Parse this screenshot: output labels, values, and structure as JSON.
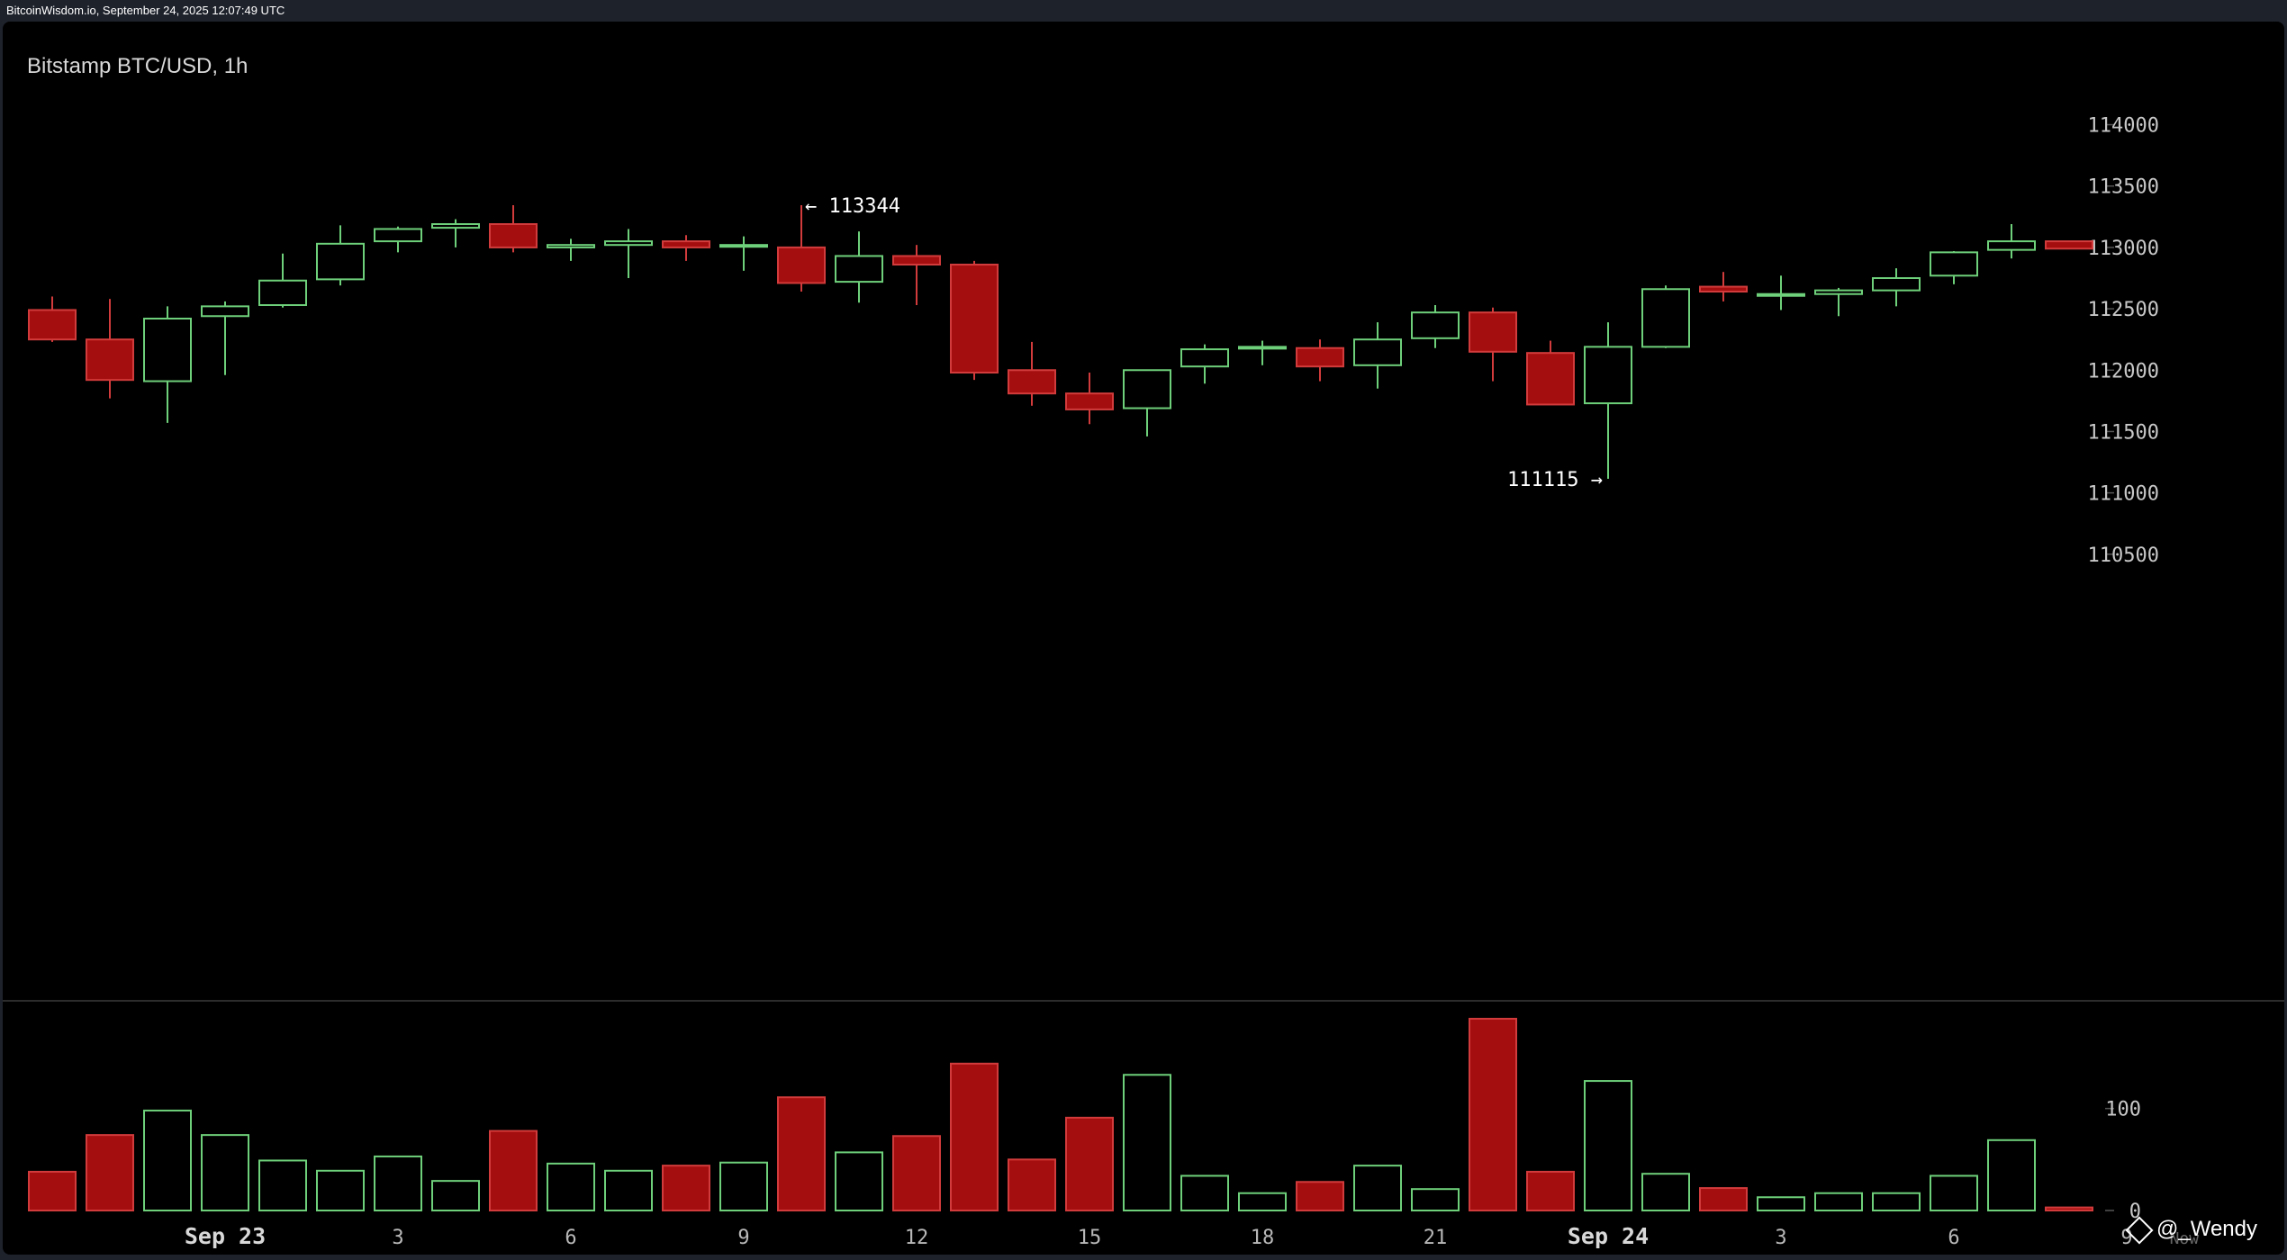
{
  "header": {
    "source": "BitcoinWisdom.io, September 24, 2025 12:07:49 UTC"
  },
  "watermark": {
    "text": "@_Wendy"
  },
  "chart_data": {
    "type": "candlestick",
    "title": "Bitstamp BTC/USD, 1h",
    "price_axis": {
      "ticks": [
        110500,
        111000,
        111500,
        112000,
        112500,
        113000,
        113500,
        114000
      ],
      "range": [
        110000,
        114400
      ]
    },
    "volume_axis": {
      "ticks": [
        0,
        100
      ],
      "range": [
        0,
        195
      ]
    },
    "x_ticks": [
      {
        "label": "Sep 23",
        "i": 3,
        "major": true
      },
      {
        "label": "3",
        "i": 6
      },
      {
        "label": "6",
        "i": 9
      },
      {
        "label": "9",
        "i": 12
      },
      {
        "label": "12",
        "i": 15
      },
      {
        "label": "15",
        "i": 18
      },
      {
        "label": "18",
        "i": 21
      },
      {
        "label": "21",
        "i": 24
      },
      {
        "label": "Sep 24",
        "i": 27,
        "major": true
      },
      {
        "label": "3",
        "i": 30
      },
      {
        "label": "6",
        "i": 33
      },
      {
        "label": "9",
        "i": 36
      },
      {
        "label": "Now",
        "i": 36.9
      }
    ],
    "annotations": [
      {
        "text": "← 113344",
        "i": 13,
        "value": 113344,
        "side": "right"
      },
      {
        "text": "111115 →",
        "i": 27,
        "value": 111115,
        "side": "left"
      }
    ],
    "candles": [
      {
        "o": 112490,
        "h": 112600,
        "l": 112230,
        "c": 112250,
        "v": 38
      },
      {
        "o": 112250,
        "h": 112580,
        "l": 111770,
        "c": 111920,
        "v": 74
      },
      {
        "o": 111910,
        "h": 112520,
        "l": 111570,
        "c": 112420,
        "v": 98
      },
      {
        "o": 112440,
        "h": 112560,
        "l": 111960,
        "c": 112520,
        "v": 74
      },
      {
        "o": 112530,
        "h": 112950,
        "l": 112510,
        "c": 112730,
        "v": 49
      },
      {
        "o": 112740,
        "h": 113180,
        "l": 112690,
        "c": 113030,
        "v": 39
      },
      {
        "o": 113050,
        "h": 113170,
        "l": 112960,
        "c": 113150,
        "v": 53
      },
      {
        "o": 113160,
        "h": 113230,
        "l": 113000,
        "c": 113190,
        "v": 29
      },
      {
        "o": 113190,
        "h": 113344,
        "l": 112960,
        "c": 113000,
        "v": 78
      },
      {
        "o": 113000,
        "h": 113070,
        "l": 112890,
        "c": 113020,
        "v": 46
      },
      {
        "o": 113020,
        "h": 113150,
        "l": 112750,
        "c": 113050,
        "v": 39
      },
      {
        "o": 113050,
        "h": 113100,
        "l": 112890,
        "c": 113000,
        "v": 44
      },
      {
        "o": 113010,
        "h": 113090,
        "l": 112810,
        "c": 113020,
        "v": 47
      },
      {
        "o": 113000,
        "h": 113344,
        "l": 112640,
        "c": 112710,
        "v": 111
      },
      {
        "o": 112720,
        "h": 113130,
        "l": 112550,
        "c": 112930,
        "v": 57
      },
      {
        "o": 112930,
        "h": 113020,
        "l": 112530,
        "c": 112860,
        "v": 73
      },
      {
        "o": 112860,
        "h": 112890,
        "l": 111920,
        "c": 111980,
        "v": 144
      },
      {
        "o": 112000,
        "h": 112230,
        "l": 111710,
        "c": 111810,
        "v": 50
      },
      {
        "o": 111810,
        "h": 111980,
        "l": 111560,
        "c": 111680,
        "v": 91
      },
      {
        "o": 111690,
        "h": 112000,
        "l": 111460,
        "c": 112000,
        "v": 133
      },
      {
        "o": 112030,
        "h": 112210,
        "l": 111890,
        "c": 112170,
        "v": 34
      },
      {
        "o": 112180,
        "h": 112240,
        "l": 112040,
        "c": 112190,
        "v": 17
      },
      {
        "o": 112180,
        "h": 112250,
        "l": 111910,
        "c": 112030,
        "v": 28
      },
      {
        "o": 112040,
        "h": 112390,
        "l": 111850,
        "c": 112250,
        "v": 44
      },
      {
        "o": 112260,
        "h": 112530,
        "l": 112180,
        "c": 112470,
        "v": 21
      },
      {
        "o": 112470,
        "h": 112510,
        "l": 111910,
        "c": 112150,
        "v": 188
      },
      {
        "o": 112140,
        "h": 112240,
        "l": 111720,
        "c": 111720,
        "v": 38
      },
      {
        "o": 111730,
        "h": 112390,
        "l": 111115,
        "c": 112190,
        "v": 127
      },
      {
        "o": 112190,
        "h": 112690,
        "l": 112180,
        "c": 112660,
        "v": 36
      },
      {
        "o": 112680,
        "h": 112800,
        "l": 112560,
        "c": 112640,
        "v": 22
      },
      {
        "o": 112620,
        "h": 112770,
        "l": 112490,
        "c": 112620,
        "v": 13
      },
      {
        "o": 112620,
        "h": 112670,
        "l": 112440,
        "c": 112650,
        "v": 17
      },
      {
        "o": 112650,
        "h": 112830,
        "l": 112520,
        "c": 112750,
        "v": 17
      },
      {
        "o": 112770,
        "h": 112970,
        "l": 112700,
        "c": 112960,
        "v": 34
      },
      {
        "o": 112980,
        "h": 113190,
        "l": 112910,
        "c": 113050,
        "v": 69
      },
      {
        "o": 113050,
        "h": 113050,
        "l": 112990,
        "c": 112990,
        "v": 3
      }
    ]
  }
}
